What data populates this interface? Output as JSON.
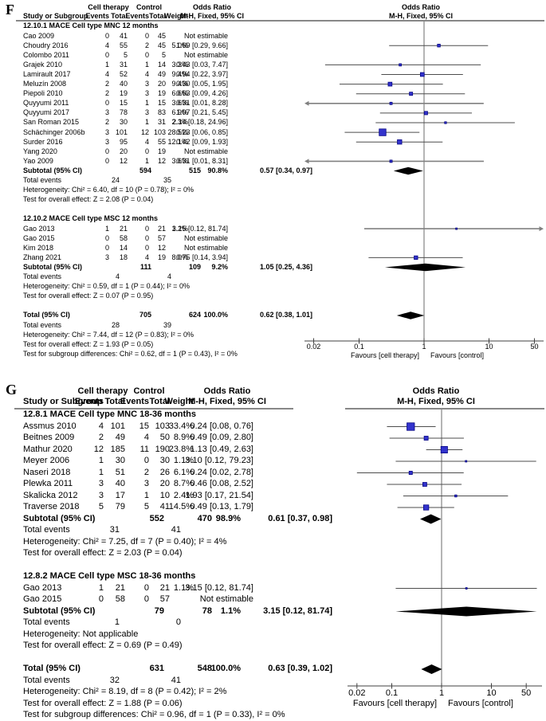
{
  "colors": {
    "square": "#3333cc",
    "square_border": "#00007f",
    "diamond": "#000000",
    "ci_line": "#4d4d4d",
    "clipped_line": "#808080",
    "axis": "#404040",
    "null_line": "#6b6b6b",
    "text": "#000000"
  },
  "chart_data": [
    {
      "panel_label": "F",
      "type": "forest",
      "effect_measure": "Odds Ratio",
      "header": {
        "group_cell": "Cell therapy",
        "group_control": "Control",
        "or_title": "Odds Ratio",
        "cols": [
          "Study or Subgroup",
          "Events",
          "Total",
          "Events",
          "Total",
          "Weight",
          "M-H, Fixed, 95% CI"
        ],
        "right_title": "Odds Ratio",
        "right_sub": "M-H, Fixed, 95% CI"
      },
      "axis": {
        "scale": "log",
        "xlim": [
          0.02,
          50
        ],
        "ticks": [
          0.02,
          0.1,
          1,
          10,
          50
        ],
        "tick_labels": [
          "0.02",
          "0.1",
          "1",
          "10",
          "50"
        ],
        "favours_left": "Favours [cell therapy]",
        "favours_right": "Favours [control]"
      },
      "rows": [
        {
          "t": "sub",
          "text": "12.10.1 MACE Cell type MNC 12 months"
        },
        {
          "t": "study",
          "name": "Cao 2009",
          "e1": "0",
          "t1": "41",
          "e2": "0",
          "t2": "45",
          "w": "",
          "or_text": "Not estimable"
        },
        {
          "t": "study",
          "name": "Choudry 2016",
          "e1": "4",
          "t1": "55",
          "e2": "2",
          "t2": "45",
          "w": "5.0%",
          "or_text": "1.69 [0.29, 9.66]",
          "or": 1.69,
          "lo": 0.29,
          "hi": 9.66,
          "wv": 5.0
        },
        {
          "t": "study",
          "name": "Colombo 2011",
          "e1": "0",
          "t1": "5",
          "e2": "0",
          "t2": "5",
          "w": "",
          "or_text": "Not estimable"
        },
        {
          "t": "study",
          "name": "Grajek 2010",
          "e1": "1",
          "t1": "31",
          "e2": "1",
          "t2": "14",
          "w": "3.3%",
          "or_text": "0.43 [0.03, 7.47]",
          "or": 0.43,
          "lo": 0.03,
          "hi": 7.47,
          "wv": 3.3
        },
        {
          "t": "study",
          "name": "Lamirault 2017",
          "e1": "4",
          "t1": "52",
          "e2": "4",
          "t2": "49",
          "w": "9.4%",
          "or_text": "0.94 [0.22, 3.97]",
          "or": 0.94,
          "lo": 0.22,
          "hi": 3.97,
          "wv": 9.4
        },
        {
          "t": "study",
          "name": "Meluzín 2008",
          "e1": "2",
          "t1": "40",
          "e2": "3",
          "t2": "20",
          "w": "9.4%",
          "or_text": "0.30 [0.05, 1.95]",
          "or": 0.3,
          "lo": 0.05,
          "hi": 1.95,
          "wv": 9.4
        },
        {
          "t": "study",
          "name": "Piepoli 2010",
          "e1": "2",
          "t1": "19",
          "e2": "3",
          "t2": "19",
          "w": "6.6%",
          "or_text": "0.63 [0.09, 4.26]",
          "or": 0.63,
          "lo": 0.09,
          "hi": 4.26,
          "wv": 6.6
        },
        {
          "t": "study",
          "name": "Quyyumi 2011",
          "e1": "0",
          "t1": "15",
          "e2": "1",
          "t2": "15",
          "w": "3.6%",
          "or_text": "0.31 [0.01, 8.28]",
          "or": 0.31,
          "lo": 0.01,
          "hi": 8.28,
          "wv": 3.6
        },
        {
          "t": "study",
          "name": "Quyyumi 2017",
          "e1": "3",
          "t1": "78",
          "e2": "3",
          "t2": "83",
          "w": "6.9%",
          "or_text": "1.07 [0.21, 5.45]",
          "or": 1.07,
          "lo": 0.21,
          "hi": 5.45,
          "wv": 6.9
        },
        {
          "t": "study",
          "name": "San Roman 2015",
          "e1": "2",
          "t1": "30",
          "e2": "1",
          "t2": "31",
          "w": "2.3%",
          "or_text": "2.14 [0.18, 24.96]",
          "or": 2.14,
          "lo": 0.18,
          "hi": 24.96,
          "wv": 2.3
        },
        {
          "t": "study",
          "name": "Schächinger 2006b",
          "e1": "3",
          "t1": "101",
          "e2": "12",
          "t2": "103",
          "w": "28.5%",
          "or_text": "0.23 [0.06, 0.85]",
          "or": 0.23,
          "lo": 0.06,
          "hi": 0.85,
          "wv": 28.5
        },
        {
          "t": "study",
          "name": "Surder 2016",
          "e1": "3",
          "t1": "95",
          "e2": "4",
          "t2": "55",
          "w": "12.1%",
          "or_text": "0.42 [0.09, 1.93]",
          "or": 0.42,
          "lo": 0.09,
          "hi": 1.93,
          "wv": 12.1
        },
        {
          "t": "study",
          "name": "Yang 2020",
          "e1": "0",
          "t1": "20",
          "e2": "0",
          "t2": "19",
          "w": "",
          "or_text": "Not estimable"
        },
        {
          "t": "study",
          "name": "Yao 2009",
          "e1": "0",
          "t1": "12",
          "e2": "1",
          "t2": "12",
          "w": "3.6%",
          "or_text": "0.31 [0.01, 8.31]",
          "or": 0.31,
          "lo": 0.01,
          "hi": 8.31,
          "wv": 3.6
        },
        {
          "t": "subtotal",
          "name": "Subtotal (95% CI)",
          "t1": "594",
          "t2": "515",
          "w": "90.8%",
          "or_text": "0.57 [0.34, 0.97]",
          "or": 0.57,
          "lo": 0.34,
          "hi": 0.97
        },
        {
          "t": "events",
          "label": "Total events",
          "e1": "24",
          "e2": "35"
        },
        {
          "t": "note",
          "text": "Heterogeneity: Chi² = 6.40, df = 10 (P = 0.78); I² = 0%"
        },
        {
          "t": "note",
          "text": "Test for overall effect: Z = 2.08 (P = 0.04)"
        },
        {
          "t": "gap"
        },
        {
          "t": "sub",
          "text": "12.10.2 MACE Cell type MSC 12 months"
        },
        {
          "t": "study",
          "name": "Gao 2013",
          "e1": "1",
          "t1": "21",
          "e2": "0",
          "t2": "21",
          "w": "1.2%",
          "or_text": "3.15 [0.12, 81.74]",
          "or": 3.15,
          "lo": 0.12,
          "hi": 81.74,
          "wv": 1.2
        },
        {
          "t": "study",
          "name": "Gao 2015",
          "e1": "0",
          "t1": "58",
          "e2": "0",
          "t2": "57",
          "w": "",
          "or_text": "Not estimable"
        },
        {
          "t": "study",
          "name": "Kim 2018",
          "e1": "0",
          "t1": "14",
          "e2": "0",
          "t2": "12",
          "w": "",
          "or_text": "Not estimable"
        },
        {
          "t": "study",
          "name": "Zhang 2021",
          "e1": "3",
          "t1": "18",
          "e2": "4",
          "t2": "19",
          "w": "8.0%",
          "or_text": "0.75 [0.14, 3.94]",
          "or": 0.75,
          "lo": 0.14,
          "hi": 3.94,
          "wv": 8.0
        },
        {
          "t": "subtotal",
          "name": "Subtotal (95% CI)",
          "t1": "111",
          "t2": "109",
          "w": "9.2%",
          "or_text": "1.05 [0.25, 4.36]",
          "or": 1.05,
          "lo": 0.25,
          "hi": 4.36
        },
        {
          "t": "events",
          "label": "Total events",
          "e1": "4",
          "e2": "4"
        },
        {
          "t": "note",
          "text": "Heterogeneity: Chi² = 0.59, df = 1 (P = 0.44); I² = 0%"
        },
        {
          "t": "note",
          "text": "Test for overall effect: Z = 0.07 (P = 0.95)"
        },
        {
          "t": "gap"
        },
        {
          "t": "total",
          "name": "Total (95% CI)",
          "t1": "705",
          "t2": "624",
          "w": "100.0%",
          "or_text": "0.62 [0.38, 1.01]",
          "or": 0.62,
          "lo": 0.38,
          "hi": 1.01
        },
        {
          "t": "events",
          "label": "Total events",
          "e1": "28",
          "e2": "39"
        },
        {
          "t": "note",
          "text": "Heterogeneity: Chi² = 7.44, df = 12 (P = 0.83); I² = 0%"
        },
        {
          "t": "note",
          "text": "Test for overall effect: Z = 1.93 (P = 0.05)"
        },
        {
          "t": "note",
          "text": "Test for subgroup differences: Chi² = 0.62, df = 1 (P = 0.43), I² = 0%"
        }
      ]
    },
    {
      "panel_label": "G",
      "type": "forest",
      "effect_measure": "Odds Ratio",
      "header": {
        "group_cell": "Cell therapy",
        "group_control": "Control",
        "or_title": "Odds Ratio",
        "cols": [
          "Study or Subgroup",
          "Events",
          "Total",
          "Events",
          "Total",
          "Weight",
          "M-H, Fixed, 95% CI"
        ],
        "right_title": "Odds Ratio",
        "right_sub": "M-H, Fixed, 95% CI"
      },
      "axis": {
        "scale": "log",
        "xlim": [
          0.02,
          50
        ],
        "ticks": [
          0.02,
          0.1,
          1,
          10,
          50
        ],
        "tick_labels": [
          "0.02",
          "0.1",
          "1",
          "10",
          "50"
        ],
        "favours_left": "Favours [cell therapy]",
        "favours_right": "Favours [control]"
      },
      "rows": [
        {
          "t": "sub",
          "text": "12.8.1 MACE Cell type MNC 18-36 months"
        },
        {
          "t": "study",
          "name": "Assmus 2010",
          "e1": "4",
          "t1": "101",
          "e2": "15",
          "t2": "103",
          "w": "33.4%",
          "or_text": "0.24 [0.08, 0.76]",
          "or": 0.24,
          "lo": 0.08,
          "hi": 0.76,
          "wv": 33.4
        },
        {
          "t": "study",
          "name": "Beitnes 2009",
          "e1": "2",
          "t1": "49",
          "e2": "4",
          "t2": "50",
          "w": "8.9%",
          "or_text": "0.49 [0.09, 2.80]",
          "or": 0.49,
          "lo": 0.09,
          "hi": 2.8,
          "wv": 8.9
        },
        {
          "t": "study",
          "name": "Mathur 2020",
          "e1": "12",
          "t1": "185",
          "e2": "11",
          "t2": "190",
          "w": "23.8%",
          "or_text": "1.13 [0.49, 2.63]",
          "or": 1.13,
          "lo": 0.49,
          "hi": 2.63,
          "wv": 23.8
        },
        {
          "t": "study",
          "name": "Meyer 2006",
          "e1": "1",
          "t1": "30",
          "e2": "0",
          "t2": "30",
          "w": "1.1%",
          "or_text": "3.10 [0.12, 79.23]",
          "or": 3.1,
          "lo": 0.12,
          "hi": 79.23,
          "wv": 1.1
        },
        {
          "t": "study",
          "name": "Naseri 2018",
          "e1": "1",
          "t1": "51",
          "e2": "2",
          "t2": "26",
          "w": "6.1%",
          "or_text": "0.24 [0.02, 2.78]",
          "or": 0.24,
          "lo": 0.02,
          "hi": 2.78,
          "wv": 6.1
        },
        {
          "t": "study",
          "name": "Plewka 2011",
          "e1": "3",
          "t1": "40",
          "e2": "3",
          "t2": "20",
          "w": "8.7%",
          "or_text": "0.46 [0.08, 2.52]",
          "or": 0.46,
          "lo": 0.08,
          "hi": 2.52,
          "wv": 8.7
        },
        {
          "t": "study",
          "name": "Skalicka 2012",
          "e1": "3",
          "t1": "17",
          "e2": "1",
          "t2": "10",
          "w": "2.4%",
          "or_text": "1.93 [0.17, 21.54]",
          "or": 1.93,
          "lo": 0.17,
          "hi": 21.54,
          "wv": 2.4
        },
        {
          "t": "study",
          "name": "Traverse 2018",
          "e1": "5",
          "t1": "79",
          "e2": "5",
          "t2": "41",
          "w": "14.5%",
          "or_text": "0.49 [0.13, 1.79]",
          "or": 0.49,
          "lo": 0.13,
          "hi": 1.79,
          "wv": 14.5
        },
        {
          "t": "subtotal",
          "name": "Subtotal (95% CI)",
          "t1": "552",
          "t2": "470",
          "w": "98.9%",
          "or_text": "0.61 [0.37, 0.98]",
          "or": 0.61,
          "lo": 0.37,
          "hi": 0.98
        },
        {
          "t": "events",
          "label": "Total events",
          "e1": "31",
          "e2": "41"
        },
        {
          "t": "note",
          "text": "Heterogeneity: Chi² = 7.25, df = 7 (P = 0.40); I² = 4%"
        },
        {
          "t": "note",
          "text": "Test for overall effect: Z = 2.03 (P = 0.04)"
        },
        {
          "t": "gap"
        },
        {
          "t": "sub",
          "text": "12.8.2 MACE Cell type MSC 18-36 months"
        },
        {
          "t": "study",
          "name": "Gao 2013",
          "e1": "1",
          "t1": "21",
          "e2": "0",
          "t2": "21",
          "w": "1.1%",
          "or_text": "3.15 [0.12, 81.74]",
          "or": 3.15,
          "lo": 0.12,
          "hi": 81.74,
          "wv": 1.1
        },
        {
          "t": "study",
          "name": "Gao 2015",
          "e1": "0",
          "t1": "58",
          "e2": "0",
          "t2": "57",
          "w": "",
          "or_text": "Not estimable"
        },
        {
          "t": "subtotal",
          "name": "Subtotal (95% CI)",
          "t1": "79",
          "t2": "78",
          "w": "1.1%",
          "or_text": "3.15 [0.12, 81.74]",
          "or": 3.15,
          "lo": 0.12,
          "hi": 81.74
        },
        {
          "t": "events",
          "label": "Total events",
          "e1": "1",
          "e2": "0"
        },
        {
          "t": "note",
          "text": "Heterogeneity: Not applicable"
        },
        {
          "t": "note",
          "text": "Test for overall effect: Z = 0.69 (P = 0.49)"
        },
        {
          "t": "gap"
        },
        {
          "t": "total",
          "name": "Total (95% CI)",
          "t1": "631",
          "t2": "548",
          "w": "100.0%",
          "or_text": "0.63 [0.39, 1.02]",
          "or": 0.63,
          "lo": 0.39,
          "hi": 1.02
        },
        {
          "t": "events",
          "label": "Total events",
          "e1": "32",
          "e2": "41"
        },
        {
          "t": "note",
          "text": "Heterogeneity: Chi² = 8.19, df = 8 (P = 0.42); I² = 2%"
        },
        {
          "t": "note",
          "text": "Test for overall effect: Z = 1.88 (P = 0.06)"
        },
        {
          "t": "note",
          "text": "Test for subgroup differences: Chi² = 0.96, df = 1 (P = 0.33), I² = 0%"
        }
      ]
    }
  ]
}
